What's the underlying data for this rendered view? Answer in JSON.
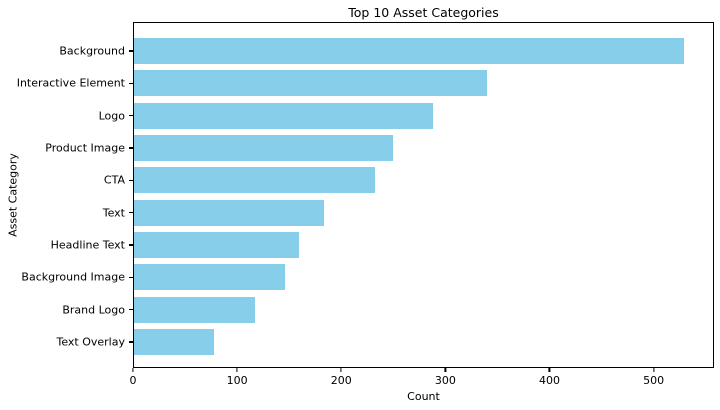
{
  "chart_data": {
    "type": "bar",
    "orientation": "horizontal",
    "title": "Top 10 Asset Categories",
    "xlabel": "Count",
    "ylabel": "Asset Category",
    "categories": [
      "Background",
      "Interactive Element",
      "Logo",
      "Product Image",
      "CTA",
      "Text",
      "Headline Text",
      "Background Image",
      "Brand Logo",
      "Text Overlay"
    ],
    "values": [
      530,
      340,
      288,
      250,
      232,
      183,
      159,
      146,
      117,
      77
    ],
    "xticks": [
      0,
      100,
      200,
      300,
      400,
      500
    ],
    "xlim": [
      0,
      558
    ],
    "bar_color": "#87CEEB",
    "axis_color": "#000000",
    "text_color": "#000000",
    "background_color": "#ffffff",
    "grid": false,
    "legend": null
  }
}
